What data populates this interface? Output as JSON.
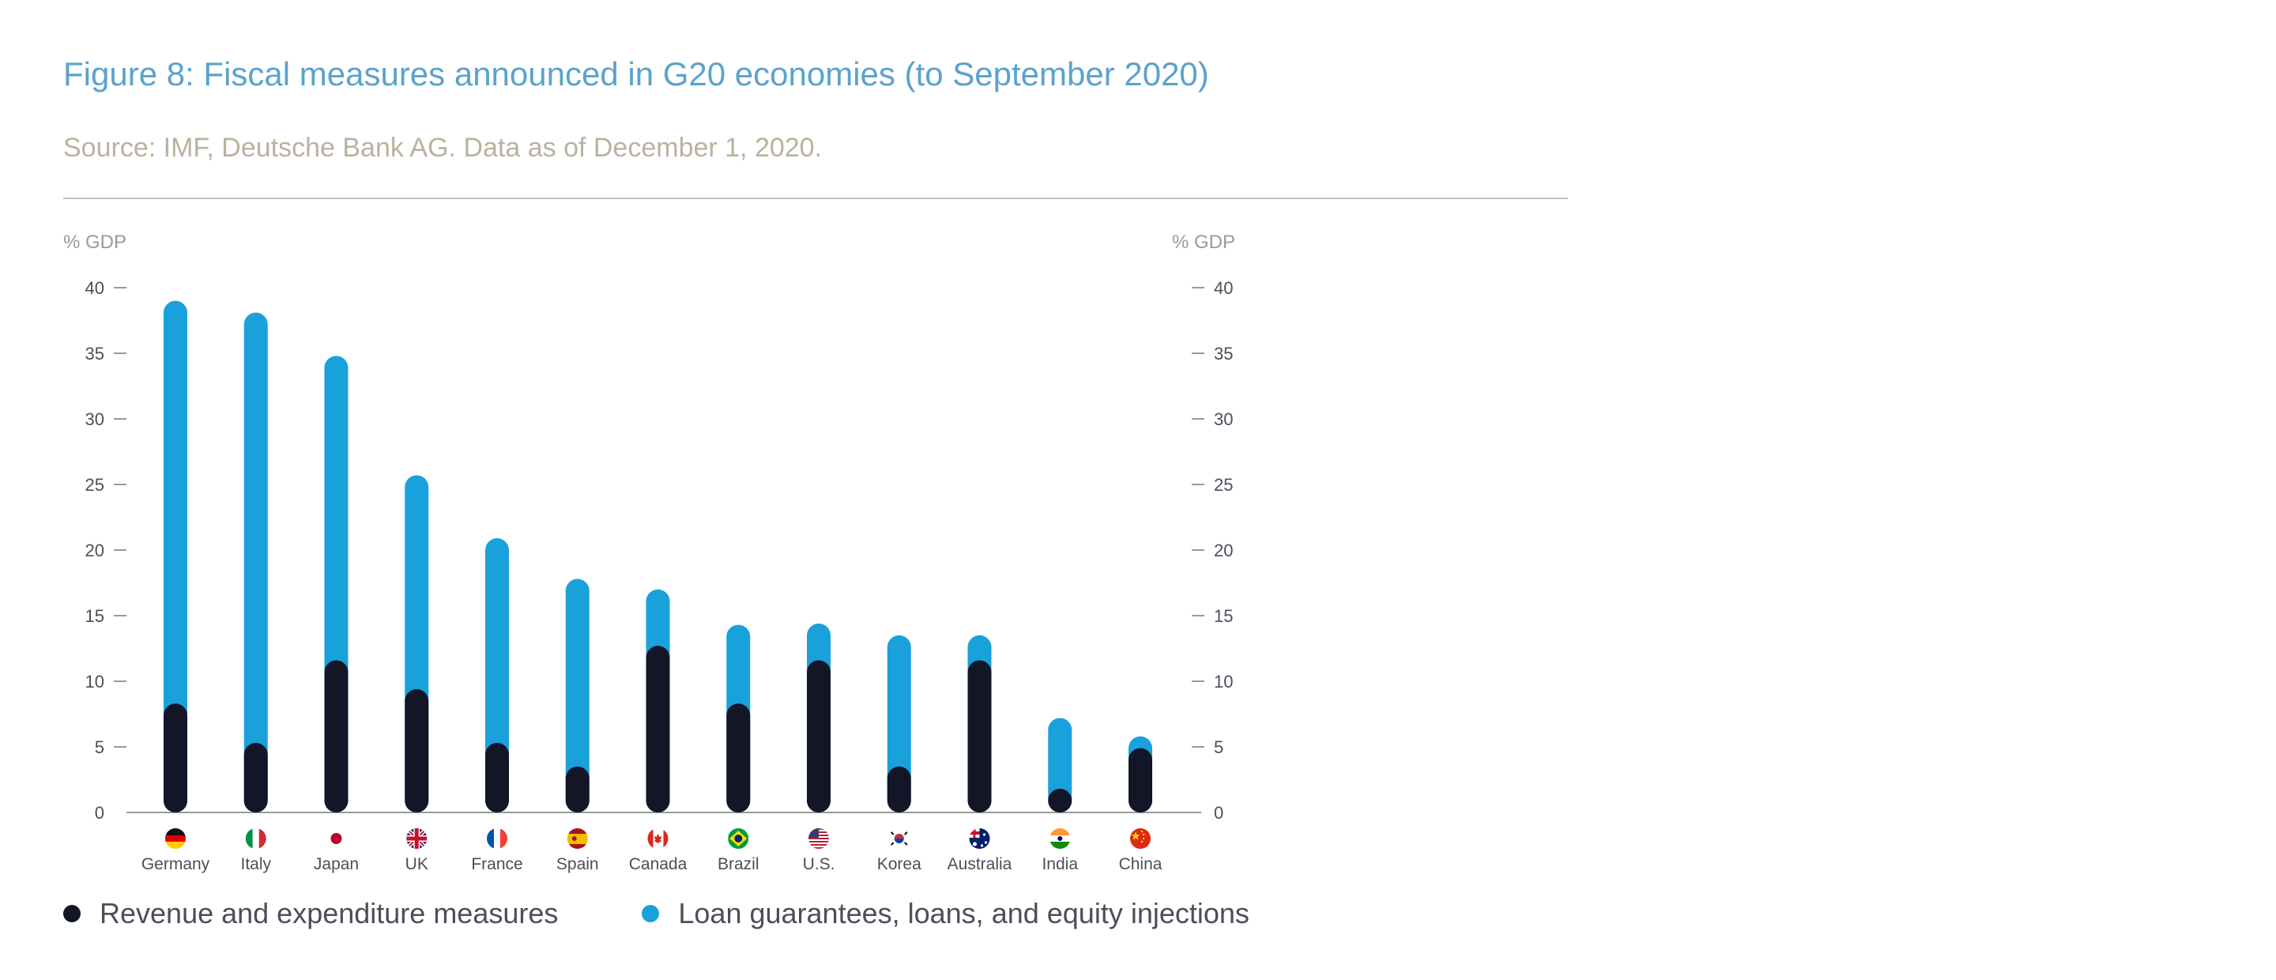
{
  "figure": {
    "title": "Figure 8: Fiscal measures announced in G20 economies (to September 2020)",
    "source": "Source: IMF, Deutsche Bank AG. Data as of December 1, 2020."
  },
  "colors": {
    "series_revenue": "#121627",
    "series_loans": "#19a1db",
    "axis": "#9a9a9a"
  },
  "chart_data": {
    "type": "bar",
    "stacked": true,
    "title": "Figure 8: Fiscal measures announced in G20 economies (to September 2020)",
    "ylabel_left": "% GDP",
    "ylabel_right": "% GDP",
    "ylim": [
      0,
      40
    ],
    "yticks": [
      0,
      5,
      10,
      15,
      20,
      25,
      30,
      35,
      40
    ],
    "grid": false,
    "legend_position": "bottom",
    "categories": [
      "Germany",
      "Italy",
      "Japan",
      "UK",
      "France",
      "Spain",
      "Canada",
      "Brazil",
      "U.S.",
      "Korea",
      "Australia",
      "India",
      "China"
    ],
    "flag_icons": [
      "germany-flag-icon",
      "italy-flag-icon",
      "japan-flag-icon",
      "uk-flag-icon",
      "france-flag-icon",
      "spain-flag-icon",
      "canada-flag-icon",
      "brazil-flag-icon",
      "us-flag-icon",
      "korea-flag-icon",
      "australia-flag-icon",
      "india-flag-icon",
      "china-flag-icon"
    ],
    "series": [
      {
        "name": "Revenue and expenditure measures",
        "color": "#121627",
        "values": [
          8.3,
          5.3,
          11.6,
          9.4,
          5.3,
          3.5,
          12.7,
          8.3,
          11.6,
          3.5,
          11.6,
          1.6,
          4.9
        ]
      },
      {
        "name": "Loan guarantees, loans, and equity injections",
        "color": "#19a1db",
        "values": [
          30.7,
          32.8,
          23.2,
          16.3,
          15.6,
          14.3,
          4.3,
          6.0,
          2.8,
          10.0,
          1.9,
          5.6,
          0.9
        ]
      }
    ]
  }
}
